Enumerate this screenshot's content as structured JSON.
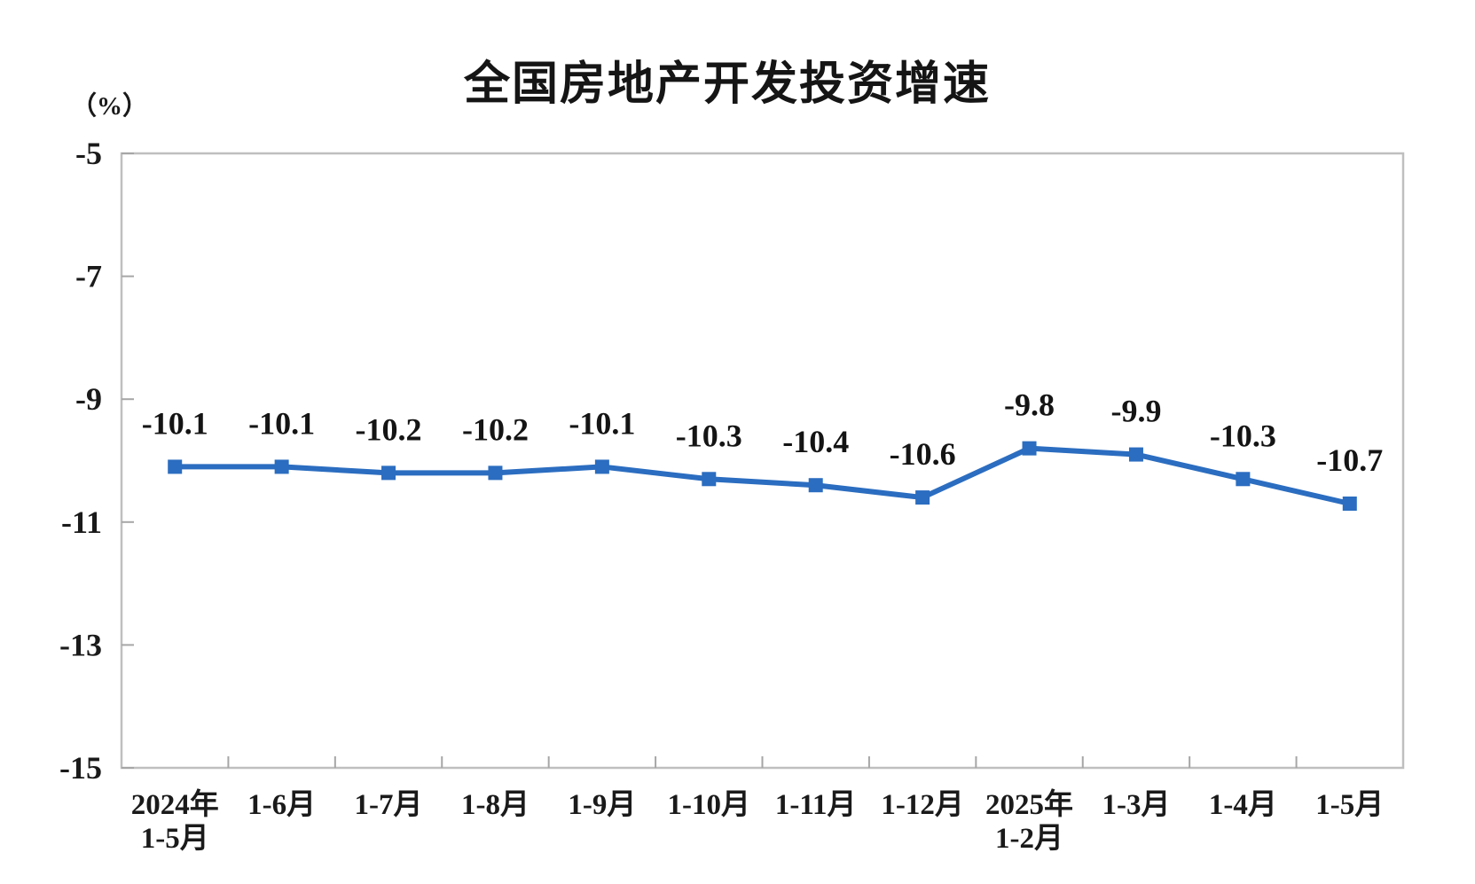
{
  "page": {
    "background": "#ffffff"
  },
  "chart_data": {
    "type": "line",
    "title": "全国房地产开发投资增速",
    "unit_label": "（%）",
    "series": [
      {
        "name": "全国房地产开发投资增速",
        "values": [
          -10.1,
          -10.1,
          -10.2,
          -10.2,
          -10.1,
          -10.3,
          -10.4,
          -10.6,
          -9.8,
          -9.9,
          -10.3,
          -10.7
        ],
        "data_labels": [
          "-10.1",
          "-10.1",
          "-10.2",
          "-10.2",
          "-10.1",
          "-10.3",
          "-10.4",
          "-10.6",
          "-9.8",
          "-9.9",
          "-10.3",
          "-10.7"
        ]
      }
    ],
    "categories": [
      [
        "2024年",
        "1-5月"
      ],
      [
        "1-6月"
      ],
      [
        "1-7月"
      ],
      [
        "1-8月"
      ],
      [
        "1-9月"
      ],
      [
        "1-10月"
      ],
      [
        "1-11月"
      ],
      [
        "1-12月"
      ],
      [
        "2025年",
        "1-2月"
      ],
      [
        "1-3月"
      ],
      [
        "1-4月"
      ],
      [
        "1-5月"
      ]
    ],
    "ylim": [
      -15,
      -5
    ],
    "yticks": [
      -5,
      -7,
      -9,
      -11,
      -13,
      -15
    ],
    "ytick_labels": [
      "-5",
      "-7",
      "-9",
      "-11",
      "-13",
      "-15"
    ],
    "grid": false,
    "legend_position": "none",
    "marker": "square",
    "colors": {
      "line": "#2B6DC0",
      "marker": "#2B6DC0",
      "axis_border": "#BFBFBF",
      "tick": "#A6A6A6",
      "text": "#1a1a1a"
    }
  }
}
